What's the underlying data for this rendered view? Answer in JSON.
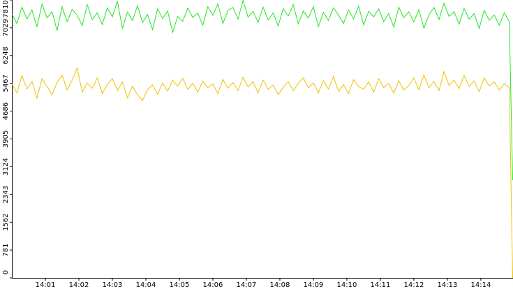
{
  "chart_data": {
    "type": "line",
    "x": [
      0,
      0.15,
      0.3,
      0.45,
      0.6,
      0.75,
      0.9,
      1.05,
      1.2,
      1.35,
      1.5,
      1.65,
      1.8,
      1.95,
      2.1,
      2.25,
      2.4,
      2.55,
      2.7,
      2.85,
      3,
      3.15,
      3.3,
      3.45,
      3.6,
      3.75,
      3.9,
      4.05,
      4.2,
      4.35,
      4.5,
      4.65,
      4.8,
      4.95,
      5.1,
      5.25,
      5.4,
      5.55,
      5.7,
      5.85,
      6,
      6.15,
      6.3,
      6.45,
      6.6,
      6.75,
      6.9,
      7.05,
      7.2,
      7.35,
      7.5,
      7.65,
      7.8,
      7.95,
      8.1,
      8.25,
      8.4,
      8.55,
      8.7,
      8.85,
      9,
      9.15,
      9.3,
      9.45,
      9.6,
      9.75,
      9.9,
      10.05,
      10.2,
      10.35,
      10.5,
      10.65,
      10.8,
      10.95,
      11.1,
      11.25,
      11.4,
      11.55,
      11.7,
      11.85,
      12,
      12.15,
      12.3,
      12.45,
      12.6,
      12.75,
      12.9,
      13.05,
      13.2,
      13.35,
      13.5,
      13.65,
      13.8,
      13.95,
      14.1,
      14.25,
      14.4,
      14.55,
      14.7,
      14.85,
      14.95
    ],
    "series": [
      {
        "color": "#22e622",
        "values": [
          7420,
          7150,
          7610,
          7280,
          7530,
          7050,
          7700,
          7310,
          7480,
          6950,
          7620,
          7200,
          7550,
          7380,
          7090,
          7680,
          7260,
          7450,
          7120,
          7590,
          7340,
          7780,
          7010,
          7470,
          7230,
          7650,
          7180,
          7400,
          6980,
          7560,
          7290,
          7500,
          6900,
          7350,
          7210,
          7580,
          7320,
          7440,
          7100,
          7620,
          7380,
          7700,
          7150,
          7520,
          7600,
          7270,
          7800,
          7330,
          7490,
          7180,
          7610,
          7250,
          7450,
          7080,
          7570,
          7360,
          7680,
          7140,
          7500,
          7300,
          7620,
          7060,
          7460,
          7240,
          7590,
          7390,
          7150,
          7530,
          7280,
          7640,
          7110,
          7490,
          7340,
          7560,
          7200,
          7430,
          7050,
          7610,
          7310,
          7480,
          7190,
          7540,
          7020,
          7390,
          7600,
          7260,
          7720,
          7350,
          7480,
          7130,
          7570,
          7270,
          7430,
          7010,
          7520,
          7240,
          7390,
          7100,
          7450,
          7200,
          2750
        ]
      },
      {
        "color": "#f0c000",
        "values": [
          5450,
          5200,
          5680,
          5310,
          5520,
          5050,
          5600,
          5380,
          5150,
          5490,
          5700,
          5280,
          5560,
          5900,
          5220,
          5470,
          5330,
          5620,
          5180,
          5440,
          5600,
          5270,
          5510,
          5060,
          5380,
          5150,
          4980,
          5290,
          5420,
          5160,
          5480,
          5250,
          5560,
          5390,
          5610,
          5300,
          5470,
          5220,
          5530,
          5350,
          5450,
          5180,
          5580,
          5330,
          5490,
          5260,
          5640,
          5370,
          5510,
          5200,
          5560,
          5300,
          5420,
          5150,
          5350,
          5520,
          5260,
          5470,
          5620,
          5340,
          5480,
          5200,
          5540,
          5310,
          5660,
          5250,
          5430,
          5180,
          5570,
          5380,
          5300,
          5510,
          5220,
          5600,
          5350,
          5470,
          5190,
          5540,
          5280,
          5410,
          5620,
          5290,
          5700,
          5350,
          5520,
          5260,
          5800,
          5410,
          5560,
          5320,
          5690,
          5380,
          5540,
          5230,
          5620,
          5400,
          5510,
          5280,
          5460,
          5350,
          0
        ]
      }
    ],
    "xlim": [
      0,
      14.96
    ],
    "xticks": [
      {
        "value": 1,
        "label": "14:01"
      },
      {
        "value": 2,
        "label": "14:02"
      },
      {
        "value": 3,
        "label": "14:03"
      },
      {
        "value": 4,
        "label": "14:04"
      },
      {
        "value": 5,
        "label": "14:05"
      },
      {
        "value": 6,
        "label": "14:06"
      },
      {
        "value": 7,
        "label": "14:07"
      },
      {
        "value": 8,
        "label": "14:08"
      },
      {
        "value": 9,
        "label": "14:09"
      },
      {
        "value": 10,
        "label": "14:10"
      },
      {
        "value": 11,
        "label": "14:11"
      },
      {
        "value": 12,
        "label": "14:12"
      },
      {
        "value": 13,
        "label": "14:13"
      },
      {
        "value": 14,
        "label": "14:14"
      }
    ],
    "ylim": [
      0,
      7810
    ],
    "yticks": [
      0,
      781,
      1562,
      2343,
      3124,
      3905,
      4686,
      5467,
      6248,
      7029,
      7810
    ]
  }
}
